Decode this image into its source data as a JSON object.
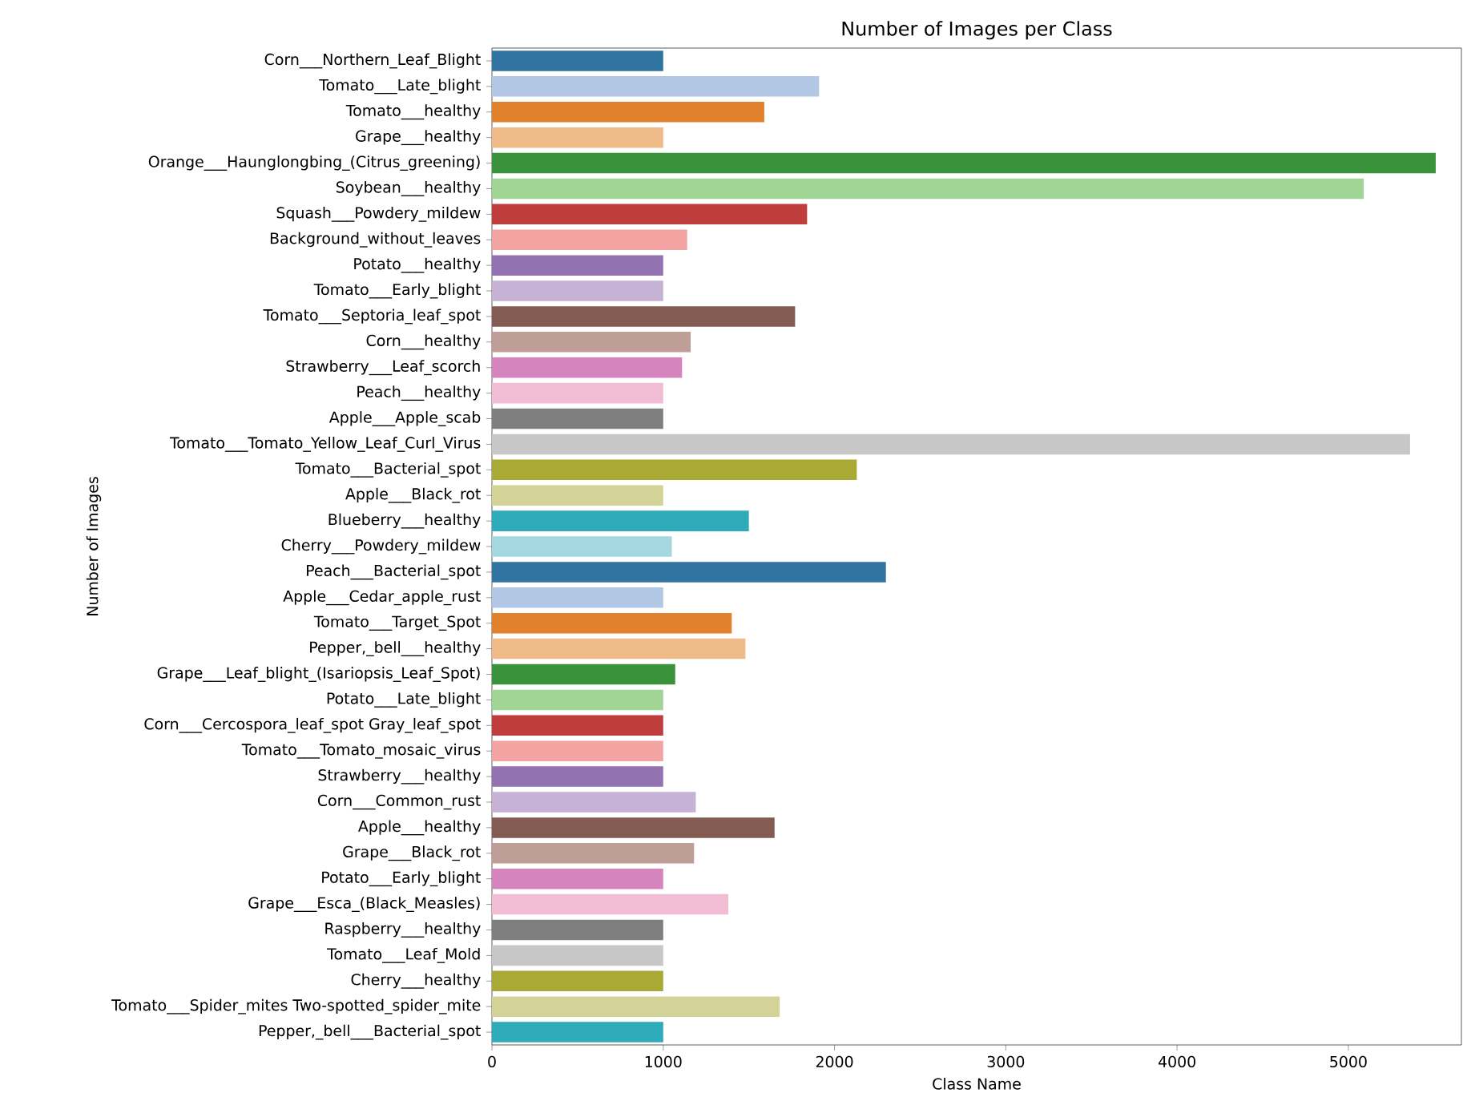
{
  "chart_data": {
    "type": "bar",
    "orientation": "horizontal",
    "title": "Number of Images per Class",
    "xlabel": "Class Name",
    "ylabel": "Number of Images",
    "categories": [
      "Corn___Northern_Leaf_Blight",
      "Tomato___Late_blight",
      "Tomato___healthy",
      "Grape___healthy",
      "Orange___Haunglongbing_(Citrus_greening)",
      "Soybean___healthy",
      "Squash___Powdery_mildew",
      "Background_without_leaves",
      "Potato___healthy",
      "Tomato___Early_blight",
      "Tomato___Septoria_leaf_spot",
      "Corn___healthy",
      "Strawberry___Leaf_scorch",
      "Peach___healthy",
      "Apple___Apple_scab",
      "Tomato___Tomato_Yellow_Leaf_Curl_Virus",
      "Tomato___Bacterial_spot",
      "Apple___Black_rot",
      "Blueberry___healthy",
      "Cherry___Powdery_mildew",
      "Peach___Bacterial_spot",
      "Apple___Cedar_apple_rust",
      "Tomato___Target_Spot",
      "Pepper,_bell___healthy",
      "Grape___Leaf_blight_(Isariopsis_Leaf_Spot)",
      "Potato___Late_blight",
      "Corn___Cercospora_leaf_spot Gray_leaf_spot",
      "Tomato___Tomato_mosaic_virus",
      "Strawberry___healthy",
      "Corn___Common_rust",
      "Apple___healthy",
      "Grape___Black_rot",
      "Potato___Early_blight",
      "Grape___Esca_(Black_Measles)",
      "Raspberry___healthy",
      "Tomato___Leaf_Mold",
      "Cherry___healthy",
      "Tomato___Spider_mites Two-spotted_spider_mite",
      "Pepper,_bell___Bacterial_spot"
    ],
    "values": [
      1000,
      1910,
      1590,
      1000,
      5510,
      5090,
      1840,
      1140,
      1000,
      1000,
      1770,
      1160,
      1110,
      1000,
      1000,
      5360,
      2130,
      1000,
      1500,
      1050,
      2300,
      1000,
      1400,
      1480,
      1070,
      1000,
      1000,
      1000,
      1000,
      1190,
      1650,
      1180,
      1000,
      1380,
      1000,
      1000,
      1000,
      1680,
      1000
    ],
    "colors": [
      "#3274a1",
      "#b2c7e4",
      "#e1812c",
      "#efbb88",
      "#3a923a",
      "#a1d595",
      "#c03d3e",
      "#f3a4a2",
      "#9372b2",
      "#c5b2d4",
      "#845b53",
      "#be9e97",
      "#d684bd",
      "#f0bdd5",
      "#7f7f7f",
      "#c7c7c7",
      "#a9aa35",
      "#d3d398",
      "#2eabb8",
      "#a5d7e0",
      "#3274a1",
      "#b2c7e4",
      "#e1812c",
      "#efbb88",
      "#3a923a",
      "#a1d595",
      "#c03d3e",
      "#f3a4a2",
      "#9372b2",
      "#c5b2d4",
      "#845b53",
      "#be9e97",
      "#d684bd",
      "#f0bdd5",
      "#7f7f7f",
      "#c7c7c7",
      "#a9aa35",
      "#d3d398",
      "#2eabb8"
    ],
    "xlim": [
      0,
      5660
    ],
    "xticks": [
      0,
      1000,
      2000,
      3000,
      4000,
      5000
    ]
  }
}
